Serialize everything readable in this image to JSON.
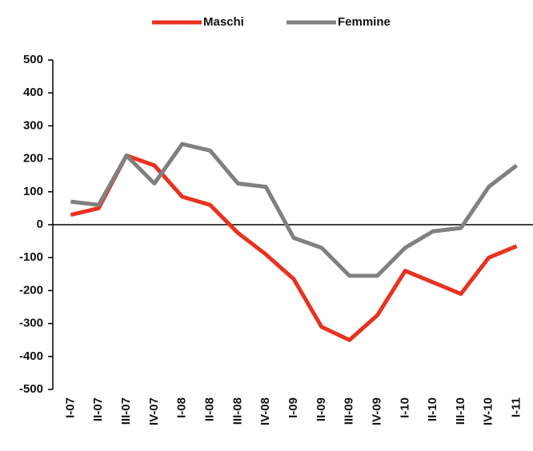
{
  "chart_data": {
    "type": "line",
    "categories": [
      "I-07",
      "II-07",
      "III-07",
      "IV-07",
      "I-08",
      "II-08",
      "III-08",
      "IV-08",
      "I-09",
      "II-09",
      "III-09",
      "IV-09",
      "I-10",
      "II-10",
      "III-10",
      "IV-10",
      "I-11"
    ],
    "series": [
      {
        "name": "Maschi",
        "color": "#e8321e",
        "values": [
          30,
          50,
          210,
          180,
          85,
          60,
          -25,
          -90,
          -165,
          -310,
          -350,
          -275,
          -140,
          -175,
          -210,
          -100,
          -65
        ]
      },
      {
        "name": "Femmine",
        "color": "#808080",
        "values": [
          70,
          60,
          210,
          125,
          245,
          225,
          125,
          115,
          -40,
          -70,
          -155,
          -155,
          -70,
          -20,
          -10,
          115,
          180
        ]
      }
    ],
    "ylim": [
      -500,
      500
    ],
    "yticks": [
      -500,
      -400,
      -300,
      -200,
      -100,
      0,
      100,
      200,
      300,
      400,
      500
    ],
    "legend": "top"
  }
}
